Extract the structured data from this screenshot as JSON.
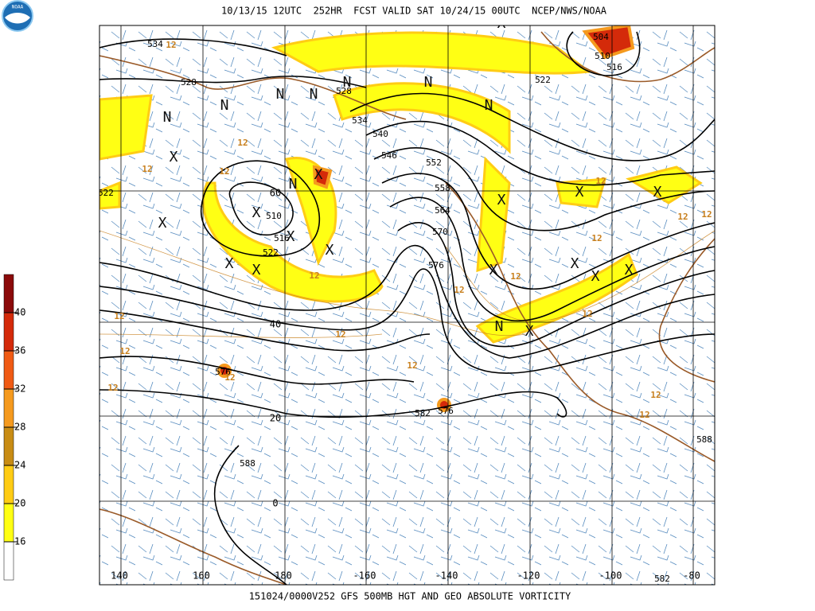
{
  "header": {
    "title": "10/13/15 12UTC  252HR  FCST VALID SAT 10/24/15 00UTC  NCEP/NWS/NOAA",
    "logo": "NOAA"
  },
  "footer": {
    "caption": "151024/0000V252 GFS 500MB HGT AND GEO ABSOLUTE VORTICITY"
  },
  "legend": {
    "ticks": [
      40,
      36,
      32,
      28,
      24,
      20,
      16
    ],
    "colors": [
      "#8b0a0a",
      "#d42a0a",
      "#f05a14",
      "#f59a1e",
      "#c88c14",
      "#ffcc14",
      "#ffff14",
      "#ffffff"
    ]
  },
  "map": {
    "longitudes": [
      140,
      160,
      180,
      -160,
      -140,
      -120,
      -100,
      -80
    ],
    "latitudes": [
      60,
      40,
      20,
      0
    ],
    "height_labels": [
      "534",
      "528",
      "528",
      "534",
      "540",
      "546",
      "552",
      "558",
      "564",
      "570",
      "576",
      "510",
      "516",
      "522",
      "504",
      "510",
      "516",
      "522",
      "522",
      "576",
      "582",
      "576",
      "588",
      "588",
      "582"
    ],
    "vorticity_labels": [
      "12",
      "12",
      "12",
      "12",
      "12",
      "12",
      "12",
      "12",
      "12",
      "12",
      "12",
      "12",
      "12",
      "12",
      "12",
      "12",
      "12",
      "12",
      "12",
      "12"
    ],
    "markers": [
      "N",
      "N",
      "N",
      "N",
      "N",
      "N",
      "N",
      "N",
      "N",
      "X",
      "X",
      "X",
      "X",
      "X",
      "X",
      "X",
      "X",
      "X",
      "X",
      "X",
      "X",
      "X",
      "X",
      "X",
      "X",
      "X"
    ]
  }
}
